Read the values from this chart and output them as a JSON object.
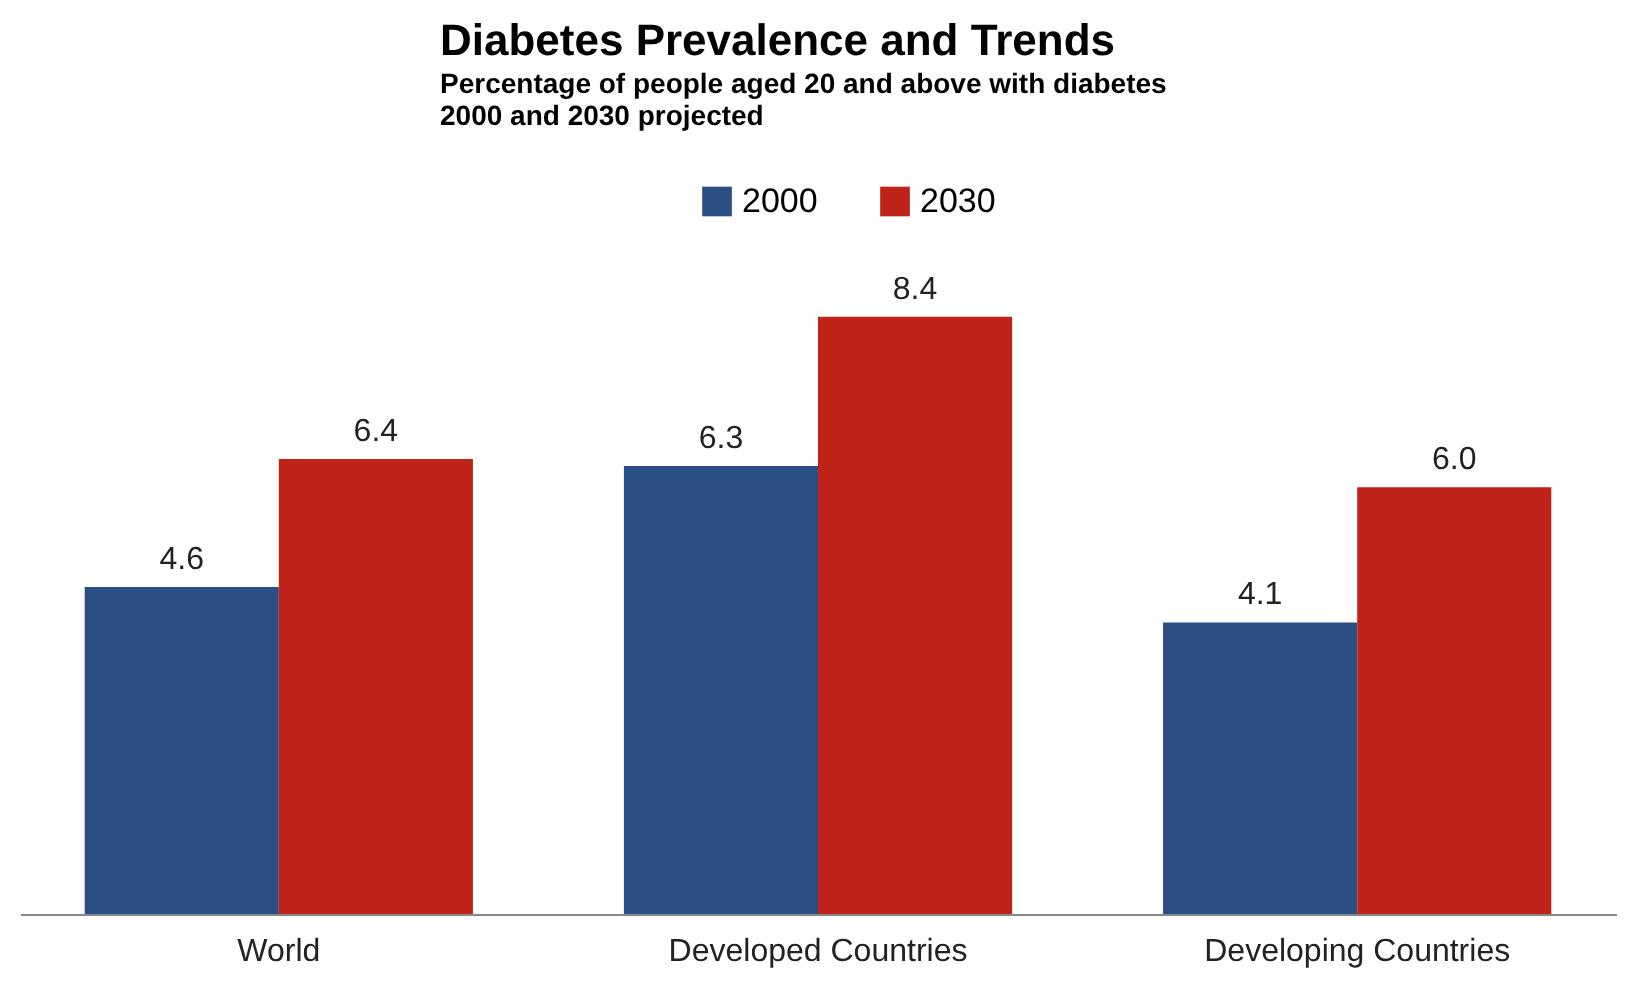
{
  "chart_data": {
    "type": "bar",
    "title": "Diabetes Prevalence and Trends",
    "subtitle": "Percentage of people aged 20 and above with diabetes\n2000 and 2030 projected",
    "categories": [
      "World",
      "Developed Countries",
      "Developing Countries"
    ],
    "series": [
      {
        "name": "2000",
        "color": "#2a4f85",
        "values": [
          4.6,
          6.3,
          4.1
        ],
        "value_labels": [
          "4.6",
          "6.3",
          "4.1"
        ]
      },
      {
        "name": "2030",
        "color": "#c0231a",
        "values": [
          6.4,
          8.4,
          6.0
        ],
        "value_labels": [
          "6.4",
          "8.4",
          "6.0"
        ]
      }
    ],
    "legend": "top",
    "grid": false
  }
}
